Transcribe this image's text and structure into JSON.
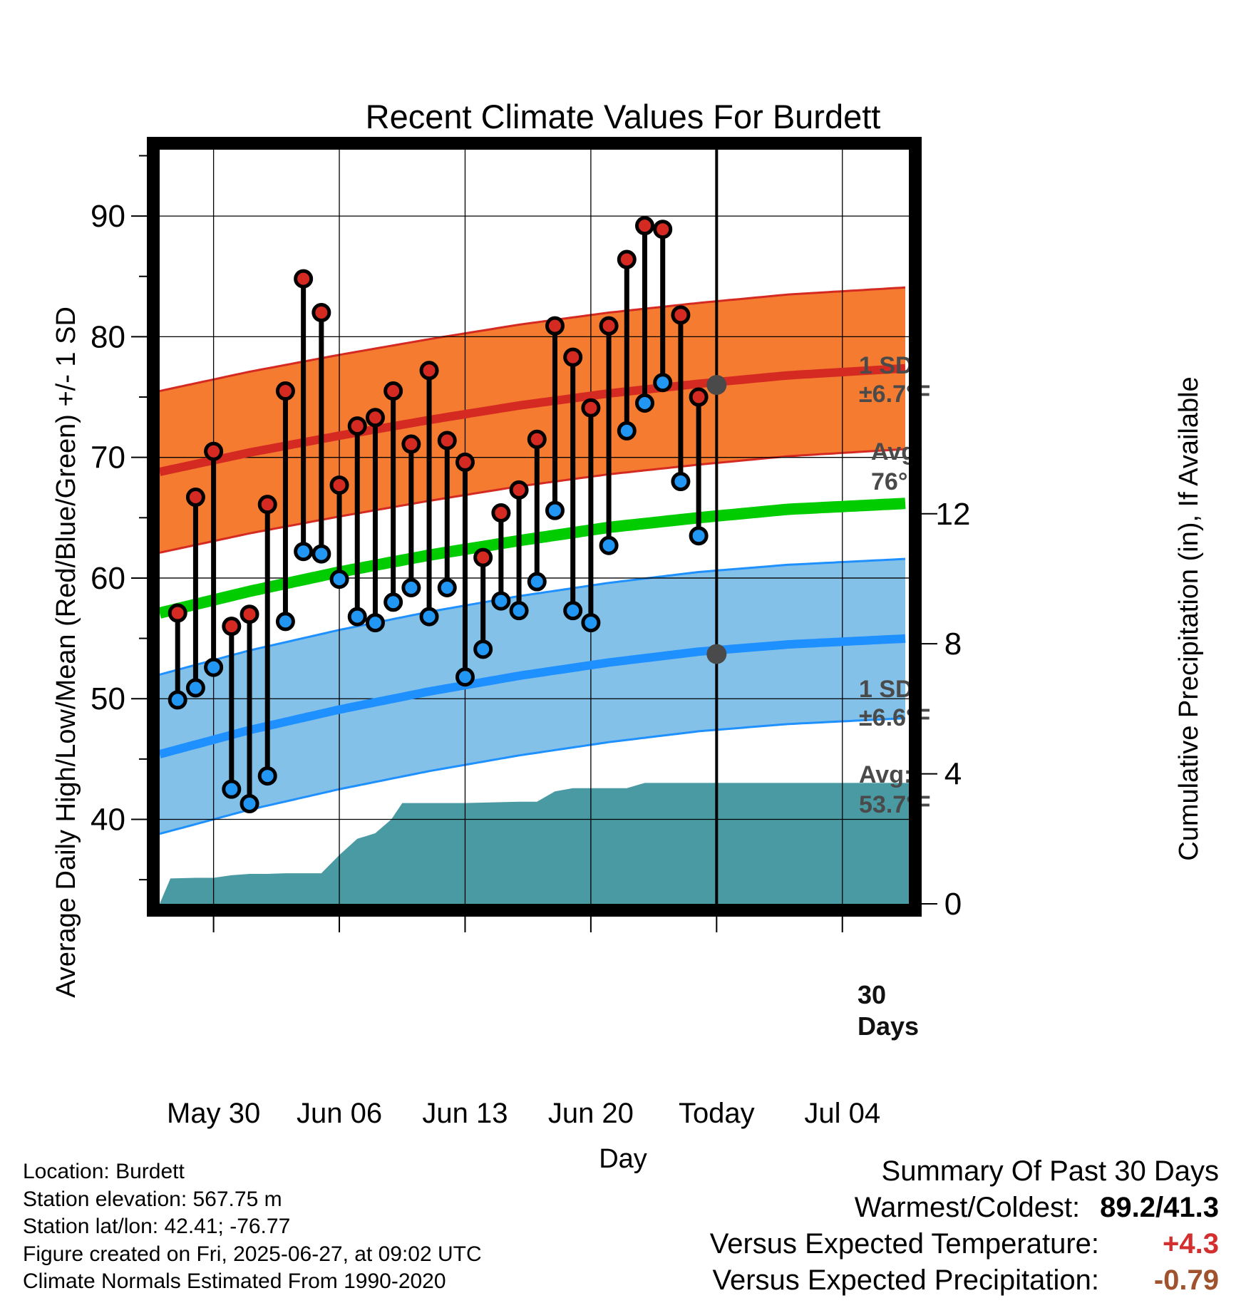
{
  "chart_data": {
    "type": "line",
    "title": "Recent Climate Values For Burdett",
    "xlabel": "Day",
    "ylabel": "Average Daily High/Low/Mean (Red/Blue/Green) +/- 1 SD",
    "y2label": "Cumulative Precipitation (in), If Available",
    "x_tick_labels": [
      "May 30",
      "Jun 06",
      "Jun 13",
      "Jun 20",
      "Today",
      "Jul 04"
    ],
    "x_ticks_day": [
      2,
      9,
      16,
      23,
      30,
      37
    ],
    "xlim_day": [
      -1,
      40.7
    ],
    "ylim": [
      33,
      95.5
    ],
    "y_ticks": [
      40,
      50,
      60,
      70,
      80,
      90
    ],
    "y_minor_step": 5,
    "y2lim": [
      0,
      23.2
    ],
    "y2_ticks": [
      0,
      4,
      8,
      12
    ],
    "today_day": 30,
    "today_label": [
      "30",
      "Days"
    ],
    "grid": true,
    "colors": {
      "high_band": "#f47b30",
      "high_line": "#d42a22",
      "low_band": "#84c1e9",
      "low_line": "#1e90ff",
      "mean_line": "#00cc00",
      "precip": "#4a9aa3",
      "marker_high": "#d42a22",
      "marker_low": "#2196f3",
      "annotation": "#4a4a4a"
    },
    "normals": {
      "days": [
        -1,
        4,
        9,
        14,
        19,
        24,
        29,
        34,
        40.7
      ],
      "high_avg": [
        68.8,
        70.4,
        71.8,
        73.1,
        74.3,
        75.3,
        76.1,
        76.8,
        77.4
      ],
      "high_sd": 6.7,
      "low_avg": [
        45.4,
        47.4,
        49.1,
        50.6,
        51.9,
        53.0,
        53.9,
        54.5,
        55.0
      ],
      "low_sd": 6.6,
      "mean_avg": [
        57.1,
        58.9,
        60.5,
        61.9,
        63.1,
        64.2,
        65.0,
        65.7,
        66.2
      ]
    },
    "series": [
      {
        "name": "High",
        "days": [
          0,
          1,
          2,
          3,
          4,
          5,
          6,
          7,
          8,
          9,
          10,
          11,
          12,
          13,
          14,
          15,
          16,
          17,
          18,
          19,
          20,
          21,
          22,
          23,
          24,
          25,
          26,
          27,
          28,
          29
        ],
        "values": [
          57.1,
          66.7,
          70.5,
          56.0,
          57.0,
          66.1,
          75.5,
          84.8,
          82.0,
          67.7,
          72.6,
          73.3,
          75.5,
          71.1,
          77.2,
          71.4,
          69.6,
          61.7,
          65.4,
          67.3,
          71.5,
          80.9,
          78.3,
          74.1,
          80.9,
          86.4,
          89.2,
          88.9,
          81.8,
          75.0
        ]
      },
      {
        "name": "Low",
        "days": [
          0,
          1,
          2,
          3,
          4,
          5,
          6,
          7,
          8,
          9,
          10,
          11,
          12,
          13,
          14,
          15,
          16,
          17,
          18,
          19,
          20,
          21,
          22,
          23,
          24,
          25,
          26,
          27,
          28,
          29
        ],
        "values": [
          49.9,
          50.9,
          52.6,
          42.5,
          41.3,
          43.6,
          56.4,
          62.2,
          62.0,
          59.9,
          56.8,
          56.3,
          58.0,
          59.2,
          56.8,
          59.2,
          51.8,
          54.1,
          58.1,
          57.3,
          59.7,
          65.6,
          57.3,
          56.3,
          62.7,
          72.2,
          74.5,
          76.2,
          68.0,
          63.5
        ]
      },
      {
        "name": "Cumulative Precipitation",
        "days": [
          -1,
          -0.4,
          1,
          2,
          3,
          4,
          5,
          6,
          7,
          8,
          9,
          10,
          11,
          11.9,
          12.5,
          16,
          19,
          20,
          21,
          22,
          23,
          24,
          25,
          26,
          27,
          28,
          29,
          30,
          40.7
        ],
        "values": [
          0,
          0.78,
          0.8,
          0.8,
          0.88,
          0.92,
          0.92,
          0.94,
          0.94,
          0.94,
          1.5,
          2.0,
          2.17,
          2.6,
          3.1,
          3.1,
          3.14,
          3.14,
          3.46,
          3.56,
          3.56,
          3.56,
          3.56,
          3.72,
          3.72,
          3.72,
          3.72,
          3.72,
          3.72
        ]
      }
    ],
    "annotations": {
      "high_sd_label": [
        "1 SD:",
        "±6.7°F"
      ],
      "high_avg_label": [
        "Avg:",
        "76°F"
      ],
      "low_sd_label": [
        "1 SD:",
        "±6.6°F"
      ],
      "low_avg_label": [
        "Avg:",
        "53.7°F"
      ],
      "high_avg_today": 76.0,
      "low_avg_today": 53.7
    }
  },
  "footer": {
    "location": "Location: Burdett",
    "elevation": "Station elevation: 567.75 m",
    "latlon": "Station lat/lon: 42.41; -76.77",
    "created": "Figure created on Fri, 2025-06-27, at 09:02 UTC",
    "normals": "Climate Normals Estimated From 1990-2020"
  },
  "summary": {
    "title": "Summary Of Past 30 Days",
    "warmest_label": "Warmest/Coldest:",
    "warmest_value": "89.2/41.3",
    "temp_label": "Versus Expected Temperature:",
    "temp_value": "+4.3",
    "precip_label": "Versus Expected Precipitation:",
    "precip_value": "-0.79"
  }
}
